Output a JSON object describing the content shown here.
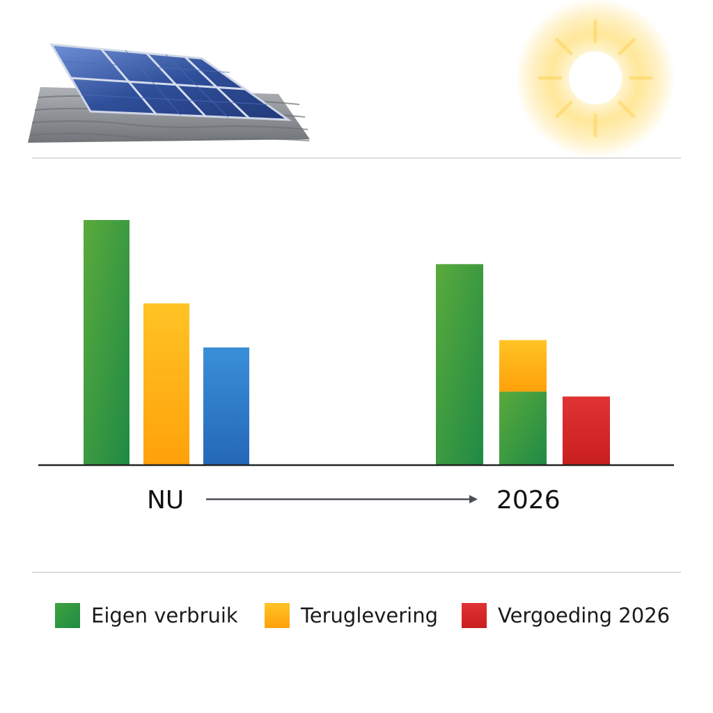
{
  "colors": {
    "green": "#2e9a44",
    "orange": "#fdb515",
    "blue": "#2f7fcb",
    "red": "#d62a2a",
    "axis": "#222222",
    "arrow": "#4a4f55"
  },
  "icons": [
    "solar-panel-icon",
    "sun-icon"
  ],
  "chart_data": {
    "type": "bar",
    "title": "",
    "xlabel": "",
    "ylabel": "",
    "ylim": [
      0,
      100
    ],
    "grid": false,
    "legend_position": "bottom",
    "groups": [
      {
        "label": "NU",
        "bars": [
          {
            "series": "Eigen verbruik",
            "segments": [
              {
                "value": 100,
                "color": "green"
              }
            ]
          },
          {
            "series": "Teruglevering",
            "segments": [
              {
                "value": 66,
                "color": "orange"
              }
            ]
          },
          {
            "series": "",
            "segments": [
              {
                "value": 48,
                "color": "blue"
              }
            ]
          }
        ]
      },
      {
        "label": "2026",
        "bars": [
          {
            "series": "Eigen verbruik",
            "segments": [
              {
                "value": 82,
                "color": "green"
              }
            ]
          },
          {
            "series": "Teruglevering",
            "segments": [
              {
                "value": 30,
                "color": "green"
              },
              {
                "value": 21,
                "color": "orange"
              }
            ]
          },
          {
            "series": "Vergoeding 2026",
            "segments": [
              {
                "value": 28,
                "color": "red"
              }
            ]
          }
        ]
      }
    ]
  },
  "labels": {
    "now": "NU",
    "future": "2026"
  },
  "legend": [
    {
      "label": "Eigen verbruik",
      "color": "green"
    },
    {
      "label": "Teruglevering",
      "color": "orange"
    },
    {
      "label": "Vergoeding 2026",
      "color": "red"
    }
  ]
}
